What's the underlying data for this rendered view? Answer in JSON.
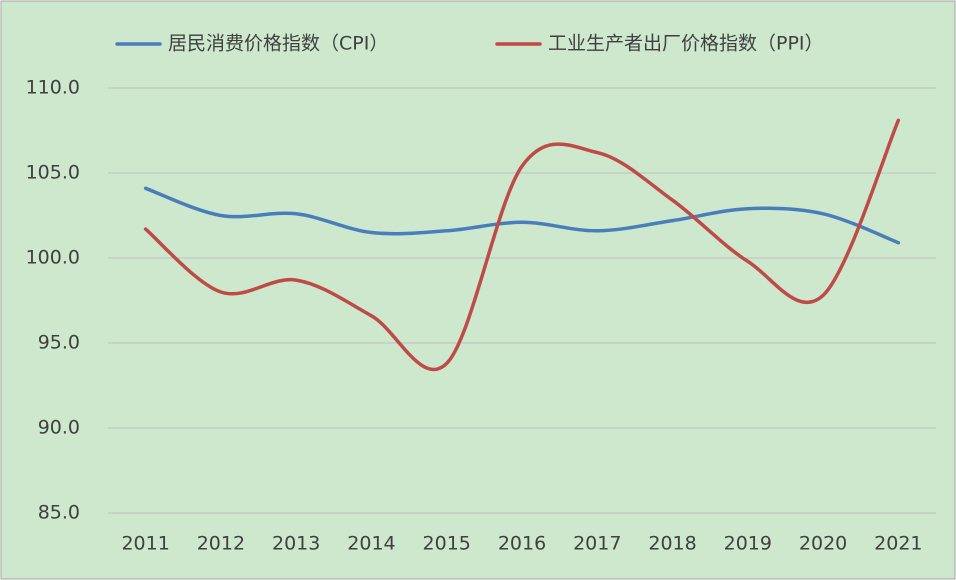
{
  "chart_data": {
    "type": "line",
    "categories": [
      "2011",
      "2012",
      "2013",
      "2014",
      "2015",
      "2016",
      "2017",
      "2018",
      "2019",
      "2020",
      "2021"
    ],
    "series": [
      {
        "name": "居民消费价格指数（CPI）",
        "color": "#4a7ebb",
        "values": [
          104.1,
          102.5,
          102.6,
          101.5,
          101.6,
          102.1,
          101.6,
          102.2,
          102.9,
          102.6,
          100.9
        ]
      },
      {
        "name": "工业生产者出厂价格指数（PPI）",
        "color": "#be4b48",
        "values": [
          101.7,
          98.0,
          98.7,
          96.6,
          93.8,
          105.4,
          106.2,
          103.4,
          99.8,
          97.8,
          108.1
        ]
      }
    ],
    "ylim": [
      85,
      110
    ],
    "yticks": [
      {
        "value": 85,
        "label": "85.0"
      },
      {
        "value": 90,
        "label": "90.0"
      },
      {
        "value": 95,
        "label": "95.0"
      },
      {
        "value": 100,
        "label": "100.0"
      },
      {
        "value": 105,
        "label": "105.0"
      },
      {
        "value": 110,
        "label": "110.0"
      }
    ],
    "grid": true,
    "legend": "top",
    "smooth": true
  }
}
